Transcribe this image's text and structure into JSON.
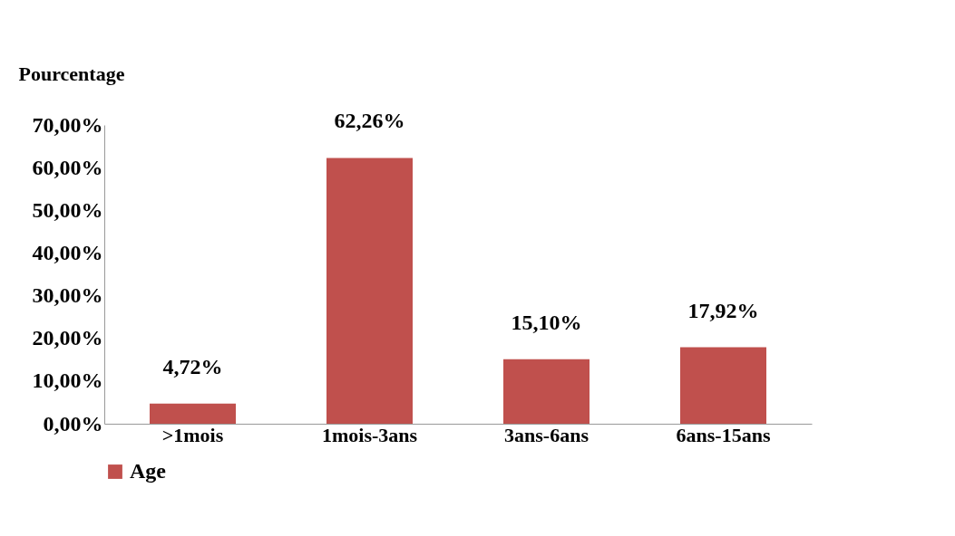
{
  "chart_data": {
    "type": "bar",
    "ylabel": "Pourcentage",
    "categories": [
      ">1mois",
      "1mois-3ans",
      "3ans-6ans",
      "6ans-15ans"
    ],
    "series": [
      {
        "name": "Age",
        "color": "#c0504d",
        "values": [
          4.72,
          62.26,
          15.1,
          17.92
        ]
      }
    ],
    "value_labels": [
      "4,72%",
      "62,26%",
      "15,10%",
      "17,92%"
    ],
    "ylim": [
      0,
      70
    ],
    "yticks": [
      {
        "value": 0,
        "label": "0,00%"
      },
      {
        "value": 10,
        "label": "10,00%"
      },
      {
        "value": 20,
        "label": "20,00%"
      },
      {
        "value": 30,
        "label": "30,00%"
      },
      {
        "value": 40,
        "label": "40,00%"
      },
      {
        "value": 50,
        "label": "50,00%"
      },
      {
        "value": 60,
        "label": "60,00%"
      },
      {
        "value": 70,
        "label": "70,00%"
      }
    ],
    "grid": false,
    "legend": "bottom"
  }
}
